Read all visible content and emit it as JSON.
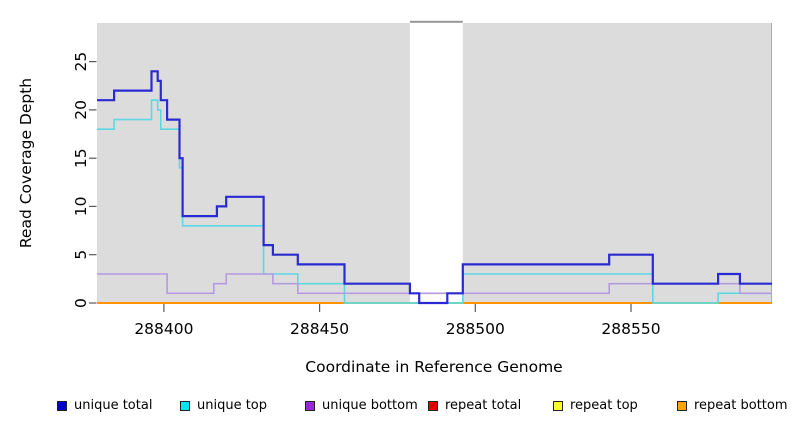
{
  "chart_data": {
    "type": "line",
    "subtype": "step-coverage-plot",
    "title": "",
    "xlabel": "Coordinate in Reference Genome",
    "ylabel": "Read Coverage Depth",
    "x_ticks": [
      288400,
      288450,
      288500,
      288550
    ],
    "y_ticks": [
      0,
      5,
      10,
      15,
      20,
      25
    ],
    "xlim": [
      288378.5,
      288595.3
    ],
    "ylim": [
      0,
      29
    ],
    "grid": false,
    "legend_position": "bottom",
    "plot_background": "#dcdcdc",
    "no_data_gap": [
      288479,
      288496
    ],
    "gap_border_color": "#969696",
    "right_border_color": "#ababab",
    "tick_color": "#5a5a5a",
    "zero_overlap_color": "#8fd48f",
    "zero_overlap_segments": [
      [
        288458,
        288496
      ],
      [
        288557,
        288578
      ]
    ],
    "series": [
      {
        "name": "unique total",
        "line_color": "#2a2ad2",
        "legend_color": "#0000cd",
        "width": 2.2,
        "steps": [
          [
            288378.5,
            21
          ],
          [
            288384,
            22
          ],
          [
            288396,
            24
          ],
          [
            288398,
            23
          ],
          [
            288399,
            21
          ],
          [
            288401,
            19
          ],
          [
            288405,
            15
          ],
          [
            288406,
            9
          ],
          [
            288417,
            10
          ],
          [
            288420,
            11
          ],
          [
            288432,
            6
          ],
          [
            288435,
            5
          ],
          [
            288443,
            4
          ],
          [
            288458,
            2
          ],
          [
            288479,
            1
          ],
          [
            288482,
            0
          ],
          [
            288491,
            1
          ],
          [
            288496,
            4
          ],
          [
            288543,
            5
          ],
          [
            288557,
            2
          ],
          [
            288578,
            3
          ],
          [
            288585,
            2
          ]
        ]
      },
      {
        "name": "unique top",
        "line_color": "#5cd8e4",
        "legend_color": "#00e5ee",
        "width": 1.6,
        "steps": [
          [
            288378.5,
            18
          ],
          [
            288384,
            19
          ],
          [
            288396,
            21
          ],
          [
            288398,
            20
          ],
          [
            288399,
            18
          ],
          [
            288405,
            14
          ],
          [
            288406,
            8
          ],
          [
            288432,
            3
          ],
          [
            288443,
            2
          ],
          [
            288458,
            0
          ],
          [
            288496,
            3
          ],
          [
            288557,
            0
          ],
          [
            288578,
            1
          ]
        ]
      },
      {
        "name": "unique bottom",
        "line_color": "#b39ae2",
        "legend_color": "#9b26d3",
        "width": 1.6,
        "steps": [
          [
            288378.5,
            3
          ],
          [
            288401,
            1
          ],
          [
            288416,
            2
          ],
          [
            288420,
            3
          ],
          [
            288435,
            2
          ],
          [
            288443,
            1
          ],
          [
            288543,
            2
          ],
          [
            288585,
            1
          ]
        ]
      },
      {
        "name": "repeat total",
        "line_color": "#d40000",
        "legend_color": "#e10000",
        "width": 1.5,
        "steps": [
          [
            288378.5,
            0
          ]
        ]
      },
      {
        "name": "repeat top",
        "line_color": "#ffff00",
        "legend_color": "#ffff2e",
        "width": 1.5,
        "steps": [
          [
            288378.5,
            0
          ]
        ]
      },
      {
        "name": "repeat bottom",
        "line_color": "#ff9300",
        "legend_color": "#ffa305",
        "width": 2.0,
        "steps": [
          [
            288378.5,
            0
          ]
        ]
      }
    ],
    "legend_item_lefts": [
      57,
      180,
      305,
      428,
      553,
      677
    ]
  }
}
